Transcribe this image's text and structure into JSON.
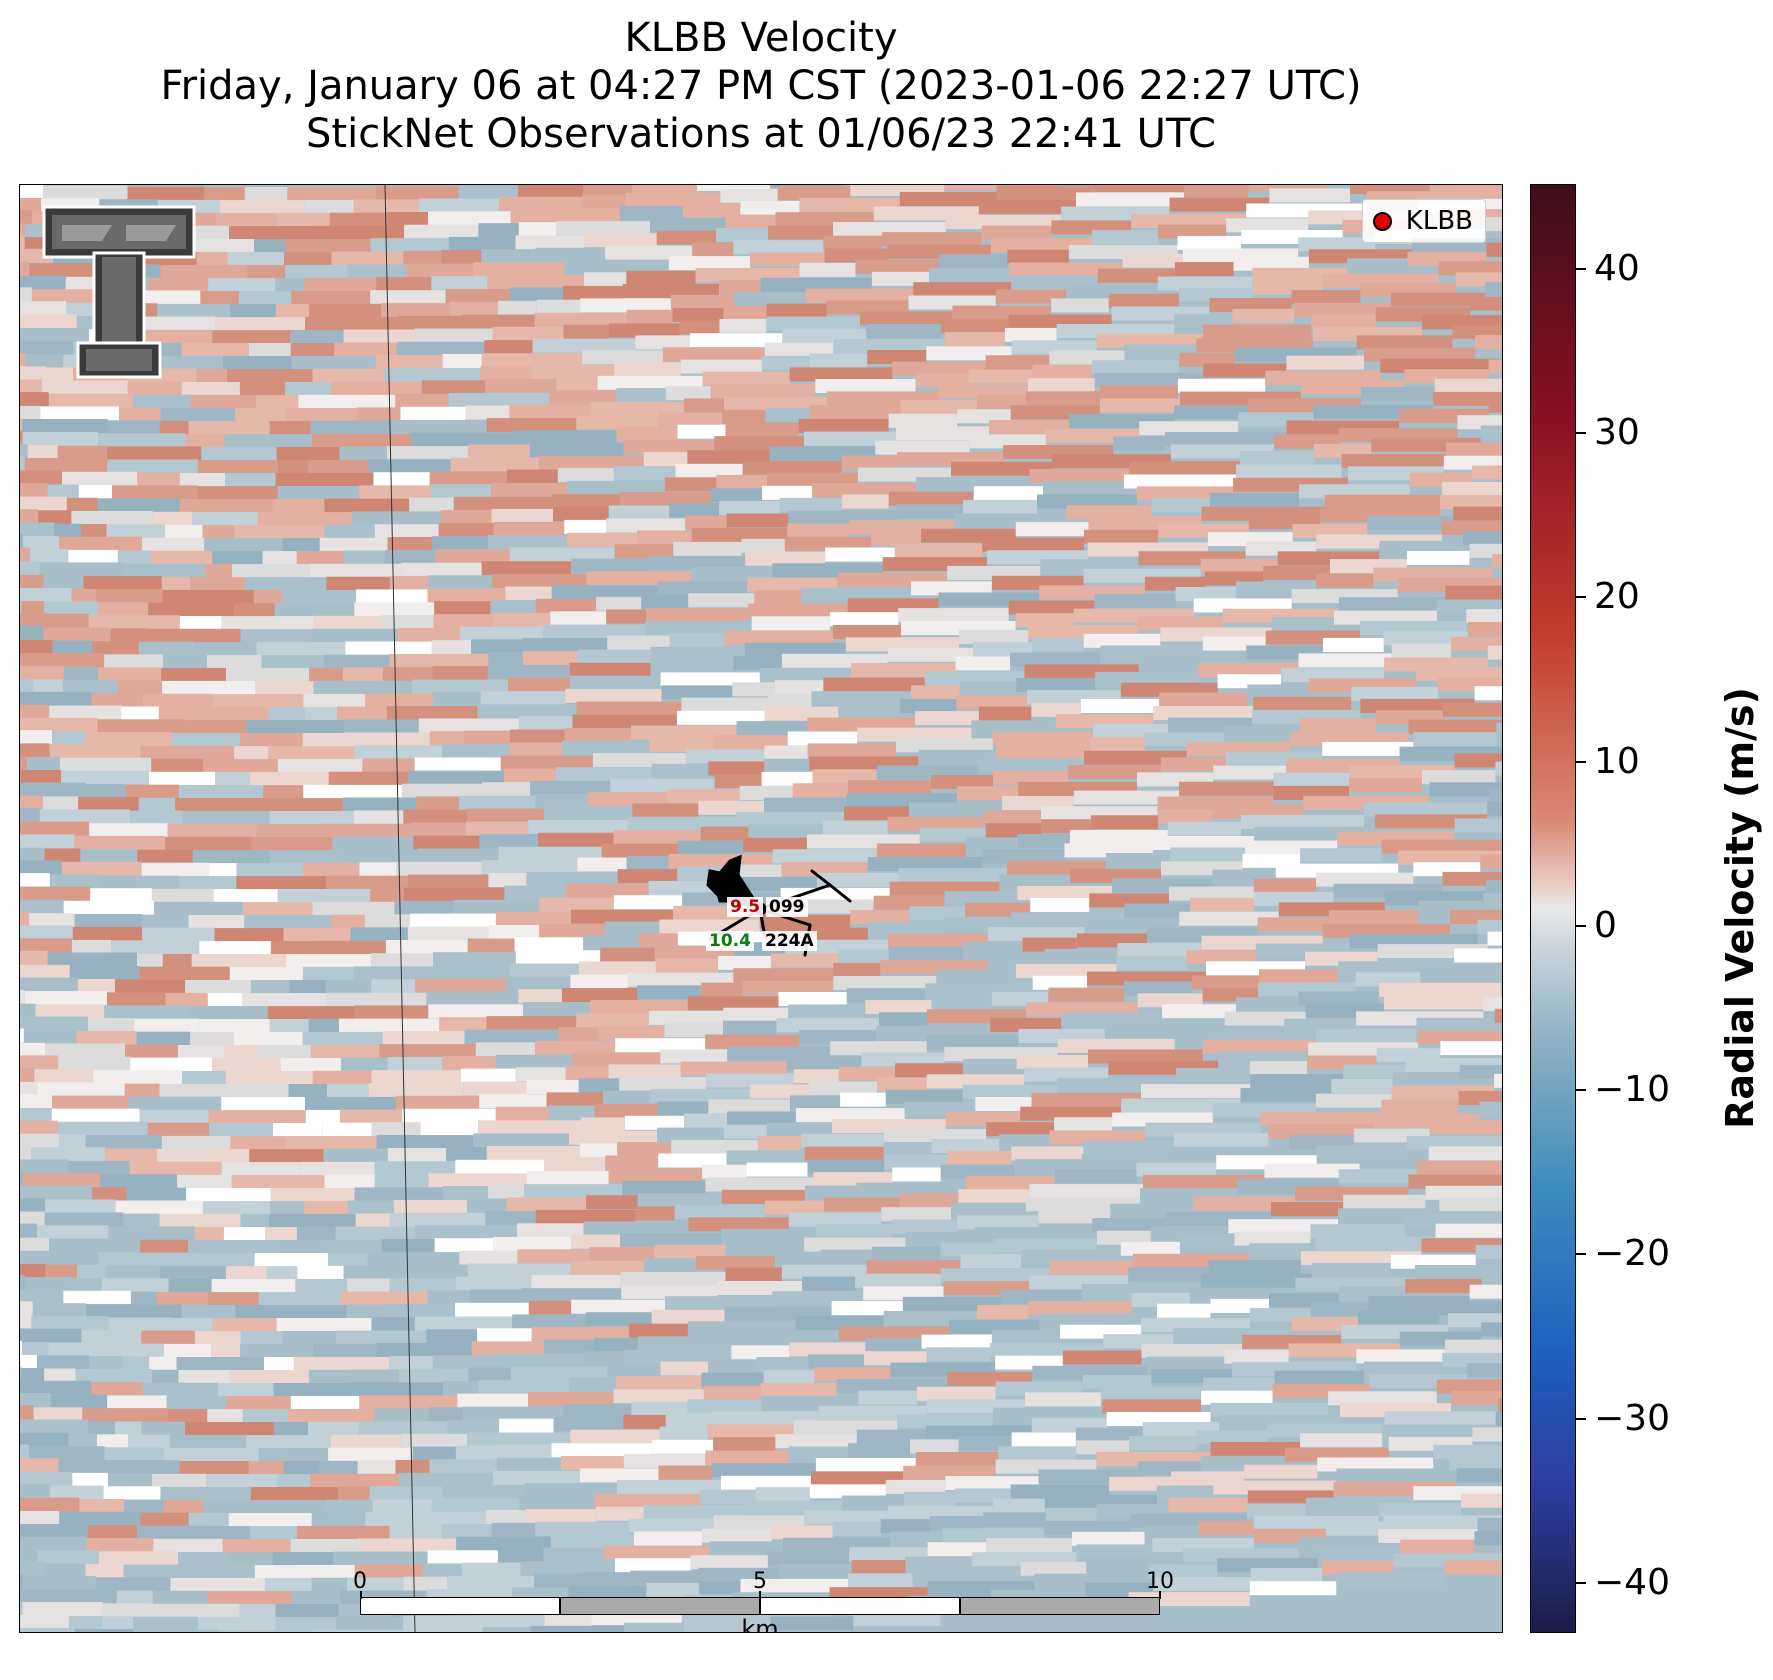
{
  "header": {
    "title": "KLBB Velocity",
    "subtitle_time": "Friday, January 06 at 04:27 PM CST (2023-01-06 22:27 UTC)",
    "subtitle_obs": "StickNet Observations at 01/06/23 22:41 UTC"
  },
  "legend": {
    "label": "KLBB",
    "marker_color": "#e00000"
  },
  "logo": {
    "icon": "texas-tech-double-t-logo"
  },
  "stations": [
    {
      "id": "099",
      "value": "9.5",
      "value_color": "#c00000"
    },
    {
      "id": "224A",
      "value": "10.4",
      "value_color": "#0a7a0a"
    }
  ],
  "scalebar": {
    "ticks": [
      "0",
      "5",
      "10"
    ],
    "unit": "km"
  },
  "colorbar": {
    "label": "Radial Velocity (m/s)",
    "ticks": [
      "40",
      "30",
      "20",
      "10",
      "0",
      "−10",
      "−20",
      "−30",
      "−40"
    ],
    "range": [
      -45,
      45
    ],
    "colors": {
      "positive": "#d98a74",
      "neutral": "#e8e8e8",
      "negative": "#8fb1c3"
    }
  }
}
